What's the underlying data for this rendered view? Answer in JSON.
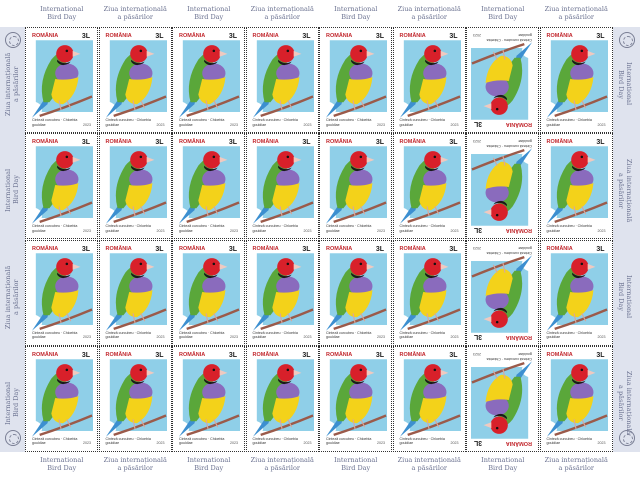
{
  "sheet": {
    "margin_text_en": "International\nBird Day",
    "margin_text_ro": "Ziua internațională\na păsărilor",
    "columns": 8,
    "rows": 4,
    "inverted_column": 7
  },
  "stamp": {
    "country": "ROMÂNIA",
    "value": "3L",
    "caption": "Cinteză curcubeu · Chloebia gouldiae",
    "year": "2023"
  },
  "colors": {
    "background_blue": "#8fcfe8",
    "head_red": "#d8202a",
    "chest_purple": "#8a6bbd",
    "belly_yellow": "#f3d21a",
    "back_green": "#5aa73a",
    "tail_blue": "#3c8fd0",
    "margin_tint": "#dfe3ee"
  }
}
